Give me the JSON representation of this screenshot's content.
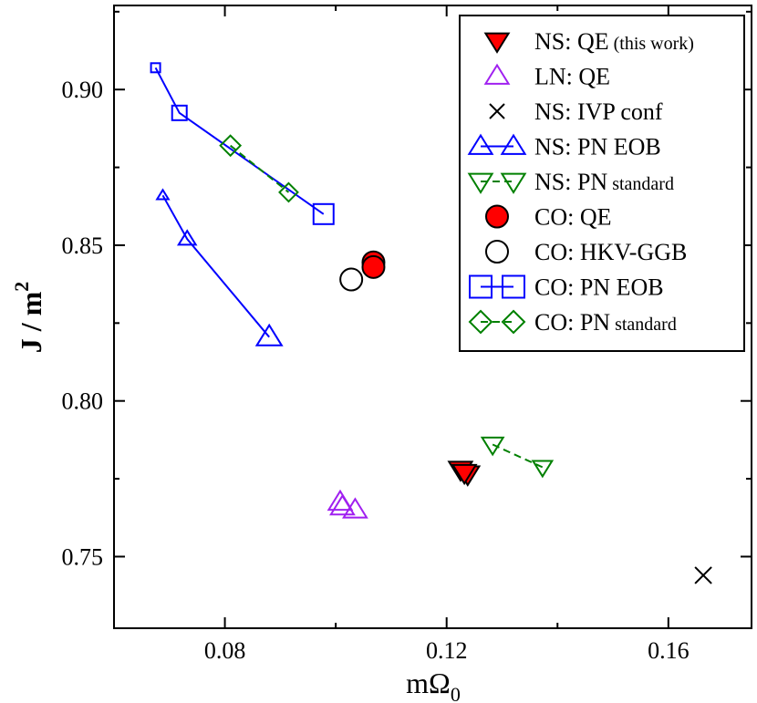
{
  "chart_data": {
    "type": "scatter",
    "title": "",
    "xlabel": {
      "main": "mΩ",
      "sub": "0"
    },
    "ylabel": {
      "main": "J / m",
      "sup": "2"
    },
    "xlim": [
      0.06,
      0.175
    ],
    "ylim": [
      0.727,
      0.927
    ],
    "xticks": [
      0.08,
      0.12,
      0.16
    ],
    "xtick_labels": [
      "0.08",
      "0.12",
      "0.16"
    ],
    "yticks": [
      0.75,
      0.8,
      0.85,
      0.9
    ],
    "ytick_labels": [
      "0.75",
      "0.80",
      "0.85",
      "0.90"
    ],
    "grid": false,
    "legend_position": "top-right",
    "series": [
      {
        "name": "NS: QE",
        "name_suffix": "(this work)",
        "marker": "triangle-down",
        "filled": true,
        "color": "#000000",
        "fill": "#ff0000",
        "line": "none",
        "points": [
          [
            0.1225,
            0.778
          ],
          [
            0.1238,
            0.7765
          ],
          [
            0.1232,
            0.777
          ]
        ]
      },
      {
        "name": "LN: QE",
        "marker": "triangle-up",
        "filled": false,
        "color": "#a020f0",
        "line": "none",
        "points": [
          [
            0.1008,
            0.7675
          ],
          [
            0.1012,
            0.766
          ],
          [
            0.1035,
            0.765
          ]
        ]
      },
      {
        "name": "NS: IVP conf",
        "marker": "x",
        "filled": false,
        "color": "#000000",
        "line": "none",
        "points": [
          [
            0.1663,
            0.744
          ]
        ]
      },
      {
        "name": "NS: PN EOB",
        "marker": "triangle-up",
        "filled": false,
        "color": "#0000ff",
        "line": "solid",
        "points": [
          [
            0.0688,
            0.866
          ],
          [
            0.0732,
            0.852
          ],
          [
            0.088,
            0.8205
          ]
        ]
      },
      {
        "name": "NS: PN",
        "name_suffix": "standard",
        "marker": "triangle-down",
        "filled": false,
        "color": "#008000",
        "line": "dashed",
        "points": [
          [
            0.1283,
            0.786
          ],
          [
            0.1373,
            0.7787
          ]
        ]
      },
      {
        "name": "CO: QE",
        "marker": "circle",
        "filled": true,
        "color": "#000000",
        "fill": "#ff0000",
        "line": "none",
        "points": [
          [
            0.1068,
            0.8445
          ],
          [
            0.1068,
            0.843
          ]
        ]
      },
      {
        "name": "CO: HKV-GGB",
        "marker": "circle",
        "filled": false,
        "color": "#000000",
        "line": "none",
        "points": [
          [
            0.1028,
            0.839
          ]
        ]
      },
      {
        "name": "CO: PN EOB",
        "marker": "square",
        "filled": false,
        "color": "#0000ff",
        "line": "solid",
        "points": [
          [
            0.0675,
            0.907
          ],
          [
            0.0718,
            0.8925
          ],
          [
            0.0978,
            0.86
          ]
        ]
      },
      {
        "name": "CO: PN",
        "name_suffix": "standard",
        "marker": "diamond",
        "filled": false,
        "color": "#008000",
        "line": "dashed",
        "points": [
          [
            0.081,
            0.882
          ],
          [
            0.0915,
            0.867
          ]
        ]
      }
    ]
  }
}
